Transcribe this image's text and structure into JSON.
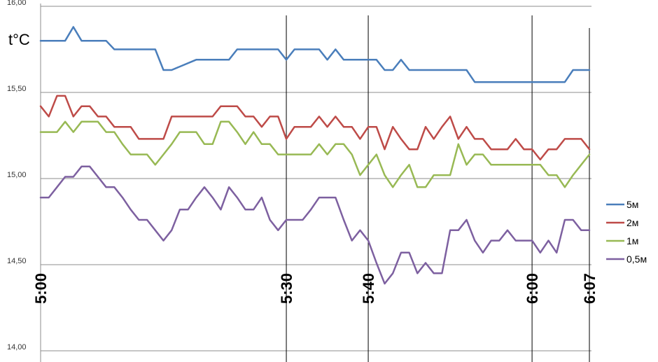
{
  "chart_data": {
    "type": "line",
    "title": "",
    "ylabel": "t°C",
    "xlabel": "",
    "ylim": [
      14.0,
      16.0
    ],
    "yticks": [
      "14,00",
      "14,50",
      "15,00",
      "15,50",
      "16,00"
    ],
    "ytick_values": [
      14.0,
      14.5,
      15.0,
      15.5,
      16.0
    ],
    "xlim": [
      0,
      67
    ],
    "xticks": [
      {
        "label": "5:00",
        "value": 0
      },
      {
        "label": "5:30",
        "value": 30
      },
      {
        "label": "5:40",
        "value": 40
      },
      {
        "label": "6:00",
        "value": 60
      },
      {
        "label": "6:07",
        "value": 67
      }
    ],
    "legend_position": "right",
    "grid": true,
    "series": [
      {
        "name": "5м",
        "color": "#4a7ebb",
        "x": [
          0,
          2,
          3,
          4,
          5,
          8,
          9,
          13,
          14,
          15,
          16,
          19,
          20,
          23,
          24,
          28,
          29,
          30,
          31,
          34,
          35,
          36,
          37,
          40,
          41,
          42,
          43,
          44,
          45,
          50,
          51,
          52,
          53,
          54,
          55,
          60,
          61,
          62,
          63,
          64,
          65,
          66,
          67
        ],
        "y": [
          15.8,
          15.8,
          15.8,
          15.88,
          15.8,
          15.8,
          15.75,
          15.75,
          15.75,
          15.63,
          15.63,
          15.69,
          15.69,
          15.69,
          15.75,
          15.75,
          15.75,
          15.69,
          15.75,
          15.75,
          15.69,
          15.75,
          15.69,
          15.69,
          15.69,
          15.63,
          15.63,
          15.69,
          15.63,
          15.63,
          15.63,
          15.63,
          15.56,
          15.56,
          15.56,
          15.56,
          15.56,
          15.56,
          15.56,
          15.56,
          15.63,
          15.63,
          15.63
        ]
      },
      {
        "name": "2м",
        "color": "#be4b48",
        "x": [
          0,
          1,
          2,
          3,
          4,
          5,
          6,
          7,
          8,
          9,
          10,
          11,
          12,
          13,
          14,
          15,
          16,
          17,
          18,
          19,
          20,
          21,
          22,
          23,
          24,
          25,
          26,
          27,
          28,
          29,
          30,
          31,
          32,
          33,
          34,
          35,
          36,
          37,
          38,
          39,
          40,
          41,
          42,
          43,
          44,
          45,
          46,
          47,
          48,
          49,
          50,
          51,
          52,
          53,
          54,
          55,
          56,
          57,
          58,
          59,
          60,
          61,
          62,
          63,
          64,
          65,
          66,
          67
        ],
        "y": [
          15.42,
          15.36,
          15.48,
          15.48,
          15.36,
          15.42,
          15.42,
          15.36,
          15.36,
          15.3,
          15.3,
          15.3,
          15.23,
          15.23,
          15.23,
          15.23,
          15.36,
          15.36,
          15.36,
          15.36,
          15.36,
          15.36,
          15.42,
          15.42,
          15.42,
          15.36,
          15.36,
          15.3,
          15.36,
          15.36,
          15.23,
          15.3,
          15.3,
          15.3,
          15.36,
          15.3,
          15.36,
          15.3,
          15.3,
          15.23,
          15.3,
          15.3,
          15.17,
          15.3,
          15.23,
          15.17,
          15.17,
          15.3,
          15.23,
          15.3,
          15.36,
          15.23,
          15.3,
          15.23,
          15.23,
          15.17,
          15.17,
          15.17,
          15.23,
          15.17,
          15.17,
          15.11,
          15.17,
          15.17,
          15.23,
          15.23,
          15.23,
          15.17
        ]
      },
      {
        "name": "1м",
        "color": "#98b954",
        "x": [
          0,
          1,
          2,
          3,
          4,
          5,
          6,
          7,
          8,
          9,
          10,
          11,
          12,
          13,
          14,
          15,
          16,
          17,
          18,
          19,
          20,
          21,
          22,
          23,
          24,
          25,
          26,
          27,
          28,
          29,
          30,
          31,
          32,
          33,
          34,
          35,
          36,
          37,
          38,
          39,
          40,
          41,
          42,
          43,
          44,
          45,
          46,
          47,
          48,
          49,
          50,
          51,
          52,
          53,
          54,
          55,
          56,
          57,
          58,
          59,
          60,
          61,
          62,
          63,
          64,
          65,
          66,
          67
        ],
        "y": [
          15.27,
          15.27,
          15.27,
          15.33,
          15.27,
          15.33,
          15.33,
          15.33,
          15.27,
          15.27,
          15.2,
          15.14,
          15.14,
          15.14,
          15.08,
          15.14,
          15.2,
          15.27,
          15.27,
          15.27,
          15.2,
          15.2,
          15.33,
          15.33,
          15.27,
          15.2,
          15.27,
          15.2,
          15.2,
          15.14,
          15.14,
          15.14,
          15.14,
          15.14,
          15.2,
          15.14,
          15.2,
          15.2,
          15.14,
          15.02,
          15.08,
          15.14,
          15.02,
          14.95,
          15.02,
          15.08,
          14.95,
          14.95,
          15.02,
          15.02,
          15.02,
          15.2,
          15.08,
          15.14,
          15.14,
          15.08,
          15.08,
          15.08,
          15.08,
          15.08,
          15.08,
          15.08,
          15.02,
          15.02,
          14.95,
          15.02,
          15.08,
          15.14
        ]
      },
      {
        "name": "0,5м",
        "color": "#7d60a0",
        "x": [
          0,
          1,
          2,
          3,
          4,
          5,
          6,
          7,
          8,
          9,
          10,
          11,
          12,
          13,
          14,
          15,
          16,
          17,
          18,
          19,
          20,
          21,
          22,
          23,
          24,
          25,
          26,
          27,
          28,
          29,
          30,
          31,
          32,
          33,
          34,
          35,
          36,
          37,
          38,
          39,
          40,
          41,
          42,
          43,
          44,
          45,
          46,
          47,
          48,
          49,
          50,
          51,
          52,
          53,
          54,
          55,
          56,
          57,
          58,
          59,
          60,
          61,
          62,
          63,
          64,
          65,
          66,
          67
        ],
        "y": [
          14.89,
          14.89,
          14.95,
          15.01,
          15.01,
          15.07,
          15.07,
          15.01,
          14.95,
          14.95,
          14.89,
          14.82,
          14.76,
          14.76,
          14.7,
          14.64,
          14.7,
          14.82,
          14.82,
          14.89,
          14.95,
          14.89,
          14.82,
          14.95,
          14.89,
          14.82,
          14.82,
          14.89,
          14.76,
          14.7,
          14.76,
          14.76,
          14.76,
          14.82,
          14.89,
          14.89,
          14.89,
          14.76,
          14.64,
          14.7,
          14.64,
          14.51,
          14.39,
          14.45,
          14.57,
          14.57,
          14.45,
          14.51,
          14.45,
          14.45,
          14.7,
          14.7,
          14.76,
          14.64,
          14.57,
          14.64,
          14.64,
          14.7,
          14.64,
          14.64,
          14.64,
          14.57,
          14.64,
          14.57,
          14.76,
          14.76,
          14.7,
          14.7
        ]
      }
    ]
  }
}
